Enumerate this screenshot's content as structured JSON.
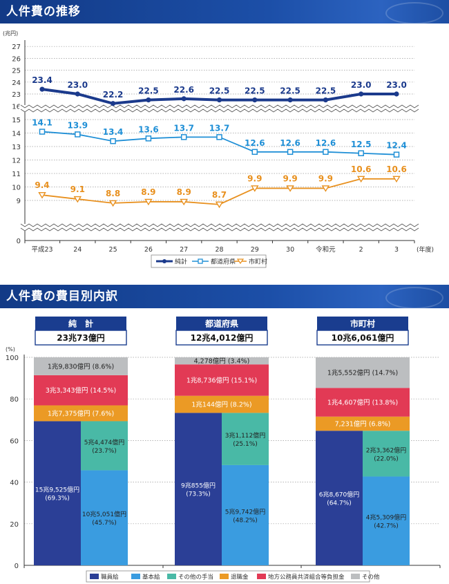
{
  "section1": {
    "title": "人件費の推移"
  },
  "section2": {
    "title": "人件費の費目別内訳"
  },
  "chart_data": [
    {
      "type": "line",
      "yunit": "(兆円)",
      "xunit": "(年度)",
      "categories": [
        "平成23",
        "24",
        "25",
        "26",
        "27",
        "28",
        "29",
        "30",
        "令和元",
        "2",
        "3"
      ],
      "yticks_top": [
        "27",
        "26",
        "25",
        "24",
        "23"
      ],
      "yticks_bottom": [
        "16",
        "15",
        "14",
        "13",
        "12",
        "11",
        "10",
        "9",
        "0"
      ],
      "axis_break": true,
      "series": [
        {
          "name": "純計",
          "color": "#1b3a8c",
          "marker": "circle",
          "values": [
            23.4,
            23.0,
            22.2,
            22.5,
            22.6,
            22.5,
            22.5,
            22.5,
            22.5,
            23.0,
            23.0
          ]
        },
        {
          "name": "都道府県",
          "color": "#1f8fd6",
          "marker": "square",
          "values": [
            14.1,
            13.9,
            13.4,
            13.6,
            13.7,
            13.7,
            12.6,
            12.6,
            12.6,
            12.5,
            12.4
          ]
        },
        {
          "name": "市町村",
          "color": "#e8901e",
          "marker": "triangle-down",
          "values": [
            9.4,
            9.1,
            8.8,
            8.9,
            8.9,
            8.7,
            9.9,
            9.9,
            9.9,
            10.6,
            10.6
          ]
        }
      ],
      "labels": {
        "純計": [
          "23.4",
          "23.0",
          "22.2",
          "22.5",
          "22.6",
          "22.5",
          "22.5",
          "22.5",
          "22.5",
          "23.0",
          "23.0"
        ],
        "都道府県": [
          "14.1",
          "13.9",
          "13.4",
          "13.6",
          "13.7",
          "13.7",
          "12.6",
          "12.6",
          "12.6",
          "12.5",
          "12.4"
        ],
        "市町村": [
          "9.4",
          "9.1",
          "8.8",
          "8.9",
          "8.9",
          "8.7",
          "9.9",
          "9.9",
          "9.9",
          "10.6",
          "10.6"
        ]
      }
    },
    {
      "type": "bar",
      "stacked": true,
      "yunit": "(%)",
      "ylim": [
        0,
        100
      ],
      "yticks": [
        "0",
        "20",
        "40",
        "60",
        "80",
        "100"
      ],
      "legend": [
        {
          "name": "職員給",
          "color": "#2b3f96"
        },
        {
          "name": "基本給",
          "color": "#3a9ce0"
        },
        {
          "name": "その他の手当",
          "color": "#49b9a6"
        },
        {
          "name": "退職金",
          "color": "#eb9a25"
        },
        {
          "name": "地方公務員共済組合等負担金",
          "color": "#e23a55"
        },
        {
          "name": "その他",
          "color": "#bcbec0"
        }
      ],
      "groups": [
        {
          "name": "純　計",
          "total": "23兆73億円",
          "shokuin": {
            "value": 69.3,
            "label1": "15兆9,525億円",
            "label2": "(69.3%)"
          },
          "kihon": {
            "value": 45.7,
            "label1": "10兆5,051億円",
            "label2": "(45.7%)"
          },
          "teate": {
            "value": 23.7,
            "label1": "5兆4,474億円",
            "label2": "(23.7%)"
          },
          "upper": [
            {
              "key": "退職金",
              "value": 7.6,
              "label": "1兆7,375億円 (7.6%)"
            },
            {
              "key": "地方公務員共済組合等負担金",
              "value": 14.5,
              "label": "3兆3,343億円 (14.5%)"
            },
            {
              "key": "その他",
              "value": 8.6,
              "label": "1兆9,830億円 (8.6%)"
            }
          ]
        },
        {
          "name": "都道府県",
          "total": "12兆4,012億円",
          "shokuin": {
            "value": 73.3,
            "label1": "9兆855億円",
            "label2": "(73.3%)"
          },
          "kihon": {
            "value": 48.2,
            "label1": "5兆9,742億円",
            "label2": "(48.2%)"
          },
          "teate": {
            "value": 25.1,
            "label1": "3兆1,112億円",
            "label2": "(25.1%)"
          },
          "upper": [
            {
              "key": "退職金",
              "value": 8.2,
              "label": "1兆144億円 (8.2%)"
            },
            {
              "key": "地方公務員共済組合等負担金",
              "value": 15.1,
              "label": "1兆8,736億円 (15.1%)"
            },
            {
              "key": "その他",
              "value": 3.4,
              "label": "4,278億円 (3.4%)"
            }
          ]
        },
        {
          "name": "市町村",
          "total": "10兆6,061億円",
          "shokuin": {
            "value": 64.7,
            "label1": "6兆8,670億円",
            "label2": "(64.7%)"
          },
          "kihon": {
            "value": 42.7,
            "label1": "4兆5,309億円",
            "label2": "(42.7%)"
          },
          "teate": {
            "value": 22.0,
            "label1": "2兆3,362億円",
            "label2": "(22.0%)"
          },
          "upper": [
            {
              "key": "退職金",
              "value": 6.8,
              "label": "7,231億円 (6.8%)"
            },
            {
              "key": "地方公務員共済組合等負担金",
              "value": 13.8,
              "label": "1兆4,607億円 (13.8%)"
            },
            {
              "key": "その他",
              "value": 14.7,
              "label": "1兆5,552億円 (14.7%)"
            }
          ]
        }
      ]
    }
  ]
}
